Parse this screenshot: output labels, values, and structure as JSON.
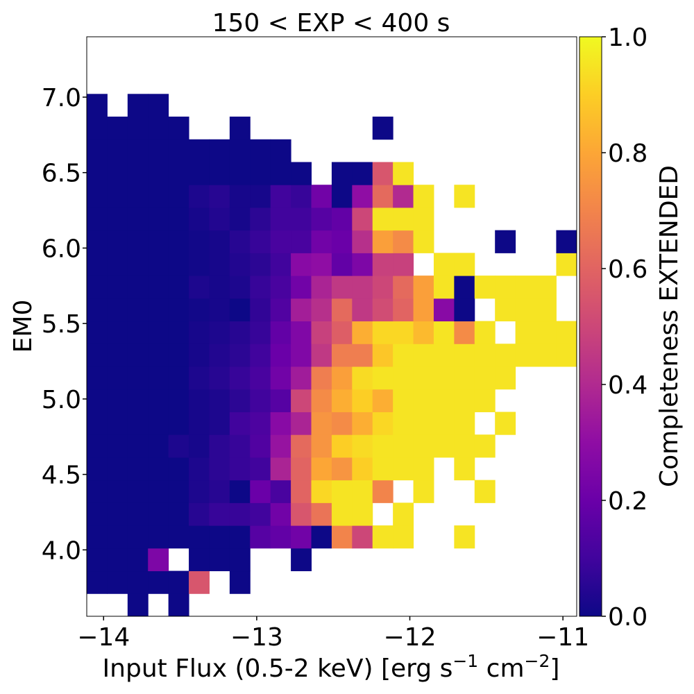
{
  "chart_data": {
    "type": "heatmap",
    "title": "150 < EXP < 400 s",
    "xlabel_main": "Input Flux (0.5-2 keV) [erg s",
    "xlabel_exp1": "−1",
    "xlabel_mid": " cm",
    "xlabel_exp2": "−2",
    "xlabel_end": "]",
    "ylabel": "EM0",
    "colorbar_label": "Completeness EXTENDED",
    "colormap": "plasma",
    "xlim": [
      -14.11,
      -10.91
    ],
    "ylim": [
      3.56,
      7.4
    ],
    "x_ticks": [
      -14,
      -13,
      -12,
      -11
    ],
    "x_tick_labels": [
      "−14",
      "−13",
      "−12",
      "−11"
    ],
    "y_ticks": [
      4.0,
      4.5,
      5.0,
      5.5,
      6.0,
      6.5,
      7.0
    ],
    "y_tick_labels": [
      "4.0",
      "4.5",
      "5.0",
      "5.5",
      "6.0",
      "6.5",
      "7.0"
    ],
    "colorbar_ticks": [
      0.0,
      0.2,
      0.4,
      0.6,
      0.8,
      1.0
    ],
    "colorbar_tick_labels": [
      "0.0",
      "0.2",
      "0.4",
      "0.6",
      "0.8",
      "1.0"
    ],
    "x_bin_start": -14.11,
    "x_bin_width": 0.1333,
    "y_bin_start": 3.56,
    "y_bin_width": 0.1505,
    "rows_bottom_to_top": [
      [
        null,
        null,
        0,
        null,
        0,
        null,
        null,
        null,
        null,
        null,
        null,
        null,
        null,
        null,
        null,
        null,
        null,
        null,
        null,
        null,
        null,
        null,
        null,
        null
      ],
      [
        0,
        0,
        0,
        0,
        0,
        0.55,
        null,
        0,
        null,
        null,
        null,
        null,
        null,
        null,
        null,
        null,
        null,
        null,
        null,
        null,
        null,
        null,
        null,
        null
      ],
      [
        0,
        0,
        0,
        0.25,
        null,
        0,
        0,
        0,
        null,
        null,
        0,
        null,
        null,
        null,
        null,
        null,
        null,
        null,
        null,
        null,
        null,
        null,
        null,
        null
      ],
      [
        0,
        0,
        0,
        0,
        0,
        0,
        0,
        0,
        0.15,
        0.18,
        0.22,
        0,
        0.7,
        0.5,
        0.95,
        0.95,
        null,
        null,
        0.95,
        null,
        null,
        null,
        null,
        null
      ],
      [
        0,
        0,
        0,
        0,
        0,
        0.05,
        0.08,
        0.08,
        0.1,
        0.22,
        0.55,
        0.65,
        0.95,
        0.95,
        null,
        0.95,
        null,
        null,
        null,
        null,
        null,
        null,
        null,
        null
      ],
      [
        0,
        0,
        0,
        0,
        0,
        0.03,
        0.05,
        0,
        0.2,
        0.12,
        0.6,
        0.92,
        0.95,
        0.95,
        0.7,
        null,
        0.95,
        null,
        null,
        0.95,
        null,
        null,
        null,
        null
      ],
      [
        0,
        0,
        0,
        0,
        0,
        0.03,
        0.06,
        0.08,
        0.1,
        0.38,
        0.6,
        0.8,
        0.75,
        0.9,
        0.95,
        0.95,
        0.95,
        null,
        0.95,
        null,
        null,
        null,
        null,
        null
      ],
      [
        0,
        0,
        0,
        0,
        0.03,
        0.02,
        0.06,
        0.08,
        0.14,
        0.32,
        0.62,
        0.75,
        0.9,
        0.93,
        0.95,
        0.95,
        0.95,
        0.95,
        0.95,
        0.95,
        null,
        null,
        null,
        null
      ],
      [
        0,
        0,
        0,
        0,
        0,
        0.02,
        0.03,
        0.1,
        0.13,
        0.28,
        0.38,
        0.75,
        0.72,
        0.82,
        0.92,
        0.95,
        0.95,
        0.95,
        0.95,
        null,
        0.95,
        null,
        null,
        null
      ],
      [
        0,
        0,
        0,
        0,
        0,
        0.02,
        0.03,
        0.06,
        0.1,
        0.15,
        0.5,
        0.72,
        0.82,
        0.9,
        0.82,
        0.95,
        0.95,
        0.95,
        0.95,
        0.95,
        null,
        null,
        null,
        null
      ],
      [
        0,
        0,
        0,
        0,
        0,
        0.03,
        0.05,
        0.08,
        0.12,
        0.22,
        0.35,
        0.68,
        0.78,
        0.93,
        0.95,
        0.95,
        0.95,
        0.95,
        0.95,
        0.95,
        0.95,
        null,
        null,
        null
      ],
      [
        0,
        0,
        0,
        0,
        0,
        0.02,
        0.04,
        0.06,
        0.1,
        0.2,
        0.26,
        0.45,
        0.68,
        0.68,
        0.88,
        0.95,
        0.95,
        0.95,
        0.95,
        0.95,
        0.95,
        0.95,
        0.95,
        0.95
      ],
      [
        0,
        0,
        0,
        0,
        0,
        0.02,
        0.03,
        0.05,
        0.08,
        0.18,
        0.26,
        0.48,
        0.58,
        0.82,
        0.92,
        0.92,
        0.85,
        0.95,
        0.72,
        0.95,
        null,
        0.95,
        0.95,
        0.95
      ],
      [
        0,
        0,
        0,
        0,
        0,
        0.01,
        0.02,
        0,
        0.07,
        0.14,
        0.36,
        0.42,
        0.62,
        0.45,
        0.52,
        0.6,
        0.78,
        0.28,
        0,
        null,
        0.95,
        0.95,
        0.95,
        null
      ],
      [
        0,
        0,
        0,
        0,
        0,
        0.03,
        0.02,
        0.03,
        0.08,
        0.12,
        0.22,
        0.38,
        0.45,
        0.45,
        0.5,
        0.62,
        0.78,
        0.95,
        0,
        0.95,
        0.95,
        0.95,
        0.95,
        null
      ],
      [
        0,
        0,
        0,
        0,
        0,
        0.01,
        0.02,
        0.04,
        0.06,
        0.1,
        0.28,
        0.3,
        0.18,
        0.25,
        0.48,
        0.48,
        null,
        0.95,
        0.95,
        null,
        null,
        null,
        null,
        0.95
      ],
      [
        0,
        0,
        0,
        0,
        0,
        0.01,
        0.02,
        0.05,
        0.08,
        0.12,
        0.12,
        0.22,
        0.2,
        0.42,
        0.78,
        0.72,
        0.95,
        null,
        null,
        null,
        0,
        null,
        null,
        0
      ],
      [
        0,
        0,
        0,
        0,
        0,
        0.02,
        0.04,
        0.02,
        0.06,
        0.1,
        0.1,
        0.15,
        0.18,
        0.5,
        0.95,
        0.95,
        0.95,
        null,
        null,
        null,
        null,
        null,
        null,
        null
      ],
      [
        0,
        0,
        0,
        0,
        0,
        0.03,
        0.05,
        0.02,
        0.02,
        0.1,
        0.08,
        0.22,
        0,
        0.3,
        0.62,
        0.4,
        0.95,
        null,
        0.95,
        null,
        null,
        null,
        null,
        null
      ],
      [
        0,
        0,
        0,
        0,
        0,
        0,
        0,
        0,
        0,
        0,
        0,
        null,
        0,
        0,
        0.55,
        0.95,
        null,
        null,
        null,
        null,
        null,
        null,
        null,
        null
      ],
      [
        0,
        0,
        0,
        0,
        0,
        0,
        0,
        0,
        0,
        0,
        null,
        null,
        null,
        null,
        null,
        null,
        null,
        null,
        null,
        null,
        null,
        null,
        null,
        null
      ],
      [
        0,
        0,
        0,
        0,
        0,
        null,
        null,
        0,
        null,
        null,
        null,
        null,
        null,
        null,
        0,
        null,
        null,
        null,
        null,
        null,
        null,
        null,
        null,
        null
      ],
      [
        0,
        null,
        0,
        0,
        null,
        null,
        null,
        null,
        null,
        null,
        null,
        null,
        null,
        null,
        null,
        null,
        null,
        null,
        null,
        null,
        null,
        null,
        null,
        null
      ]
    ]
  }
}
